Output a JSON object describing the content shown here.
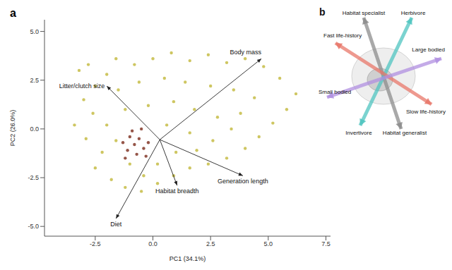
{
  "chart_data": {
    "type": "scatter",
    "panel_label": "a",
    "xlabel": "PC1 (34.1%)",
    "ylabel": "PC2 (26.0%)",
    "xlim": [
      -4.7,
      7.7
    ],
    "ylim": [
      -5.5,
      5.6
    ],
    "xticks": [
      -2.5,
      {
        "value": 0,
        "label": "0.0"
      },
      2.5,
      {
        "value": 5,
        "label": "5.0"
      },
      7.5
    ],
    "yticks": [
      {
        "value": -5,
        "label": "-5.0"
      },
      -2.5,
      {
        "value": 0,
        "label": "0.0"
      },
      2.5,
      {
        "value": 5,
        "label": "5.0"
      }
    ],
    "series": [
      {
        "color": "#c2b83a",
        "points": [
          [
            -3.2,
            3.0
          ],
          [
            -2.8,
            3.3
          ],
          [
            -2.5,
            2.2
          ],
          [
            -3.0,
            1.5
          ],
          [
            -2.6,
            0.8
          ],
          [
            -3.4,
            0.2
          ],
          [
            -2.9,
            -0.5
          ],
          [
            -2.2,
            -1.2
          ],
          [
            -2.5,
            -2.0
          ],
          [
            -1.8,
            -2.6
          ],
          [
            -1.2,
            -3.0
          ],
          [
            -0.5,
            -3.2
          ],
          [
            0.2,
            -2.8
          ],
          [
            0.9,
            -2.4
          ],
          [
            1.6,
            -2.0
          ],
          [
            2.4,
            -1.8
          ],
          [
            3.2,
            -1.5
          ],
          [
            4.0,
            -1.0
          ],
          [
            4.6,
            -0.4
          ],
          [
            5.2,
            0.3
          ],
          [
            5.8,
            1.0
          ],
          [
            6.2,
            1.8
          ],
          [
            5.5,
            2.6
          ],
          [
            4.8,
            3.2
          ],
          [
            4.0,
            3.6
          ],
          [
            3.2,
            3.4
          ],
          [
            2.4,
            3.8
          ],
          [
            1.6,
            3.5
          ],
          [
            0.8,
            3.9
          ],
          [
            0.0,
            3.6
          ],
          [
            -0.8,
            3.3
          ],
          [
            -1.6,
            3.6
          ],
          [
            -2.0,
            2.8
          ],
          [
            -1.5,
            2.0
          ],
          [
            -0.6,
            2.4
          ],
          [
            0.5,
            2.6
          ],
          [
            1.4,
            2.4
          ],
          [
            2.5,
            2.2
          ],
          [
            3.5,
            2.0
          ],
          [
            4.4,
            1.6
          ],
          [
            3.8,
            0.8
          ],
          [
            2.8,
            0.6
          ],
          [
            1.8,
            1.0
          ],
          [
            0.9,
            1.4
          ],
          [
            -0.2,
            1.2
          ],
          [
            -1.2,
            1.0
          ],
          [
            -2.0,
            0.2
          ],
          [
            -1.6,
            -0.6
          ],
          [
            0.6,
            0.2
          ],
          [
            1.6,
            -0.2
          ],
          [
            2.6,
            -0.6
          ],
          [
            3.4,
            0.0
          ],
          [
            1.0,
            -1.2
          ],
          [
            0.2,
            -1.8
          ],
          [
            -1.0,
            -1.8
          ],
          [
            -0.4,
            -2.4
          ],
          [
            1.9,
            -1.1
          ]
        ]
      },
      {
        "color": "#7a2a1a",
        "points": [
          [
            -0.8,
            -0.8
          ],
          [
            -0.6,
            -0.5
          ],
          [
            -1.0,
            -0.4
          ],
          [
            -0.4,
            -1.0
          ],
          [
            -1.1,
            -1.1
          ],
          [
            -0.7,
            -1.3
          ],
          [
            -0.2,
            -0.7
          ],
          [
            -1.3,
            -0.7
          ],
          [
            -0.5,
            0.0
          ],
          [
            -0.9,
            -0.1
          ],
          [
            -0.3,
            -1.4
          ],
          [
            -1.2,
            -1.5
          ]
        ]
      }
    ],
    "loading_origin": [
      0.3,
      -0.55
    ],
    "loadings": [
      {
        "label": "Body mass",
        "x": 4.7,
        "y": 3.6
      },
      {
        "label": "Litter/clutch size",
        "x": -2.0,
        "y": 2.2
      },
      {
        "label": "Generation length",
        "x": 3.9,
        "y": -2.4
      },
      {
        "label": "Habitat breadth",
        "x": 1.05,
        "y": -2.9
      },
      {
        "label": "Diet",
        "x": -1.6,
        "y": -4.6
      }
    ]
  },
  "inset": {
    "panel_label": "b",
    "axes": [
      {
        "ends": [
          "Habitat specialist",
          "Habitat generalist"
        ],
        "color": "#8c8c8c"
      },
      {
        "ends": [
          "Herbivore",
          "Invertivore"
        ],
        "color": "#4fc4c0"
      },
      {
        "ends": [
          "Fast life-history",
          "Slow life-history"
        ],
        "color": "#e8776a"
      },
      {
        "ends": [
          "Large bodied",
          "Small bodied"
        ],
        "color": "#b08fe0"
      }
    ]
  }
}
